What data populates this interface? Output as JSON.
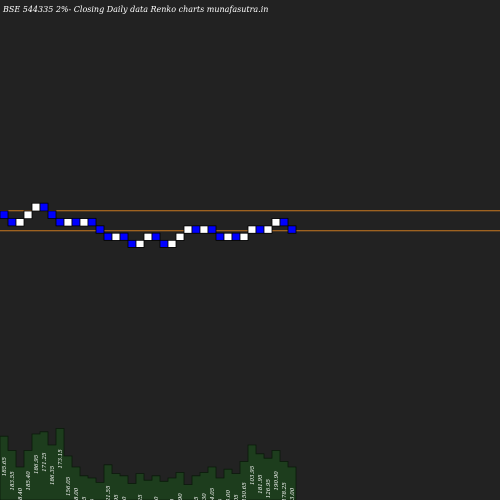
{
  "title": "BSE 544335 2%-  Closing Daily data  Renko  charts munafasutra.in",
  "colors": {
    "background": "#222222",
    "up_brick": "#ffffff",
    "down_brick": "#0000ff",
    "brick_border": "#000000",
    "level_line": "#c87820",
    "volume_fill": "#1d3d1d",
    "volume_line": "#0a1a0a",
    "text": "#ffffff"
  },
  "chart_data": {
    "type": "renko",
    "brick_pct": 2,
    "levels": [
      176,
      167
    ],
    "bricks": [
      {
        "dir": "down",
        "close": 172.5
      },
      {
        "dir": "down",
        "close": 169.2
      },
      {
        "dir": "up",
        "close": 172.5
      },
      {
        "dir": "up",
        "close": 175.9
      },
      {
        "dir": "up",
        "close": 179.4
      },
      {
        "dir": "down",
        "close": 175.9
      },
      {
        "dir": "down",
        "close": 172.5
      },
      {
        "dir": "down",
        "close": 169.2
      },
      {
        "dir": "up",
        "close": 172.5
      },
      {
        "dir": "down",
        "close": 169.2
      },
      {
        "dir": "up",
        "close": 172.5
      },
      {
        "dir": "down",
        "close": 169.2
      },
      {
        "dir": "down",
        "close": 165.9
      },
      {
        "dir": "down",
        "close": 162.7
      },
      {
        "dir": "up",
        "close": 165.9
      },
      {
        "dir": "down",
        "close": 162.7
      },
      {
        "dir": "down",
        "close": 159.5
      },
      {
        "dir": "up",
        "close": 162.7
      },
      {
        "dir": "up",
        "close": 165.9
      },
      {
        "dir": "down",
        "close": 162.7
      },
      {
        "dir": "down",
        "close": 159.5
      },
      {
        "dir": "up",
        "close": 162.7
      },
      {
        "dir": "up",
        "close": 165.9
      },
      {
        "dir": "up",
        "close": 169.2
      },
      {
        "dir": "down",
        "close": 165.9
      },
      {
        "dir": "up",
        "close": 169.2
      },
      {
        "dir": "down",
        "close": 165.9
      },
      {
        "dir": "down",
        "close": 162.7
      },
      {
        "dir": "up",
        "close": 165.9
      },
      {
        "dir": "down",
        "close": 162.7
      },
      {
        "dir": "up",
        "close": 165.9
      },
      {
        "dir": "up",
        "close": 169.2
      },
      {
        "dir": "down",
        "close": 165.9
      },
      {
        "dir": "up",
        "close": 169.2
      },
      {
        "dir": "up",
        "close": 172.5
      },
      {
        "dir": "down",
        "close": 169.2
      },
      {
        "dir": "down",
        "close": 165.9
      }
    ],
    "volume_labels": [
      "185.65",
      "183.55",
      "188.40",
      "185.40",
      "186.95",
      "171.25",
      "186.35",
      "173.15",
      "156.05",
      "138.00",
      "152.75",
      "121.05",
      "151.55",
      "121.55",
      "119.95",
      "110.30",
      "118.05",
      "109.25",
      "108.05",
      "106.90",
      "104.40",
      "112.50",
      "105.90",
      "107.95",
      "102.35",
      "103.30",
      "114.05",
      "117.55",
      "113.00",
      "121.05",
      "150.65",
      "103.95",
      "181.95",
      "126.95",
      "190.90",
      "178.25",
      "123.00"
    ],
    "volume_levels": [
      0.58,
      0.45,
      0.3,
      0.45,
      0.6,
      0.62,
      0.5,
      0.65,
      0.4,
      0.3,
      0.22,
      0.2,
      0.16,
      0.32,
      0.24,
      0.22,
      0.15,
      0.24,
      0.18,
      0.22,
      0.17,
      0.2,
      0.25,
      0.14,
      0.22,
      0.25,
      0.3,
      0.2,
      0.28,
      0.24,
      0.35,
      0.5,
      0.42,
      0.38,
      0.45,
      0.35,
      0.3
    ]
  }
}
